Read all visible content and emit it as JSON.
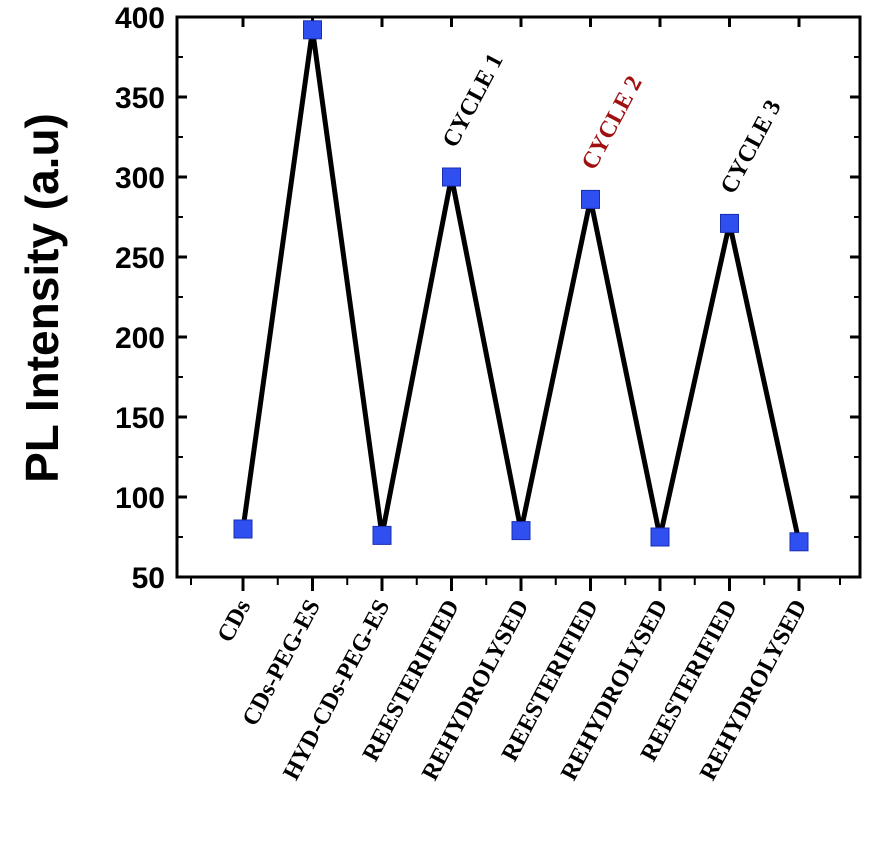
{
  "chart_data": {
    "type": "line",
    "title": "",
    "xlabel": "",
    "ylabel": "PL Intensity (a.u)",
    "ylim": [
      50,
      400
    ],
    "yticks": [
      50,
      100,
      150,
      200,
      250,
      300,
      350,
      400
    ],
    "categories": [
      "CDs",
      "CDs-PEG-ES",
      "HYD-CDs-PEG-ES",
      "REESTERIFIED",
      "REHYDROLYSED",
      "REESTERIFIED",
      "REHYDROLYSED",
      "REESTERIFIED",
      "REHYDROLYSED"
    ],
    "series": [
      {
        "values": [
          80,
          392,
          76,
          300,
          79,
          286,
          75,
          271,
          72
        ]
      }
    ],
    "annotations": [
      {
        "text": "CYCLE 1",
        "category_index": 3,
        "color": "#000000"
      },
      {
        "text": "CYCLE 2",
        "category_index": 5,
        "color": "#a01010"
      },
      {
        "text": "CYCLE 3",
        "category_index": 7,
        "color": "#000000"
      }
    ],
    "line_color": "#000000",
    "marker_color": "#2f4ff0",
    "grid": false,
    "legend": "none"
  }
}
